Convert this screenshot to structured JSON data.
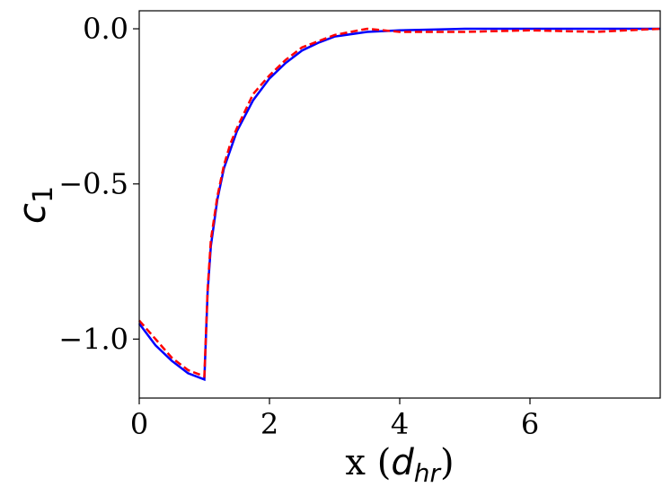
{
  "chart_data": {
    "type": "line",
    "xlabel": [
      "x (",
      "d",
      "hr",
      ")"
    ],
    "ylabel": [
      "c",
      "1"
    ],
    "x": [
      0,
      0.25,
      0.5,
      0.75,
      1,
      1.05,
      1.1,
      1.2,
      1.3,
      1.4,
      1.5,
      1.75,
      2,
      2.25,
      2.5,
      2.75,
      3,
      3.5,
      4,
      5,
      6,
      7,
      8
    ],
    "series": [
      {
        "color": "#0000ff",
        "dash": false,
        "values": [
          -0.95,
          -1.02,
          -1.07,
          -1.11,
          -1.13,
          -0.85,
          -0.7,
          -0.55,
          -0.45,
          -0.39,
          -0.33,
          -0.23,
          -0.16,
          -0.11,
          -0.07,
          -0.045,
          -0.025,
          -0.01,
          -0.005,
          0,
          0,
          0,
          0
        ]
      },
      {
        "color": "#ff0000",
        "dash": true,
        "values": [
          -0.94,
          -1.0,
          -1.06,
          -1.1,
          -1.12,
          -0.84,
          -0.68,
          -0.54,
          -0.44,
          -0.37,
          -0.32,
          -0.21,
          -0.15,
          -0.1,
          -0.06,
          -0.04,
          -0.02,
          0.0,
          -0.01,
          -0.01,
          -0.005,
          -0.01,
          0
        ]
      }
    ],
    "xlim": [
      0,
      8
    ],
    "xticks": [
      0,
      2,
      4,
      6
    ],
    "ylim": [
      -1.19,
      0.058
    ],
    "yticks": [
      {
        "value": 0,
        "label": "0.0"
      },
      {
        "value": -0.5,
        "label": "−0.5"
      },
      {
        "value": -1.0,
        "label": "−1.0"
      }
    ],
    "grid": false
  }
}
